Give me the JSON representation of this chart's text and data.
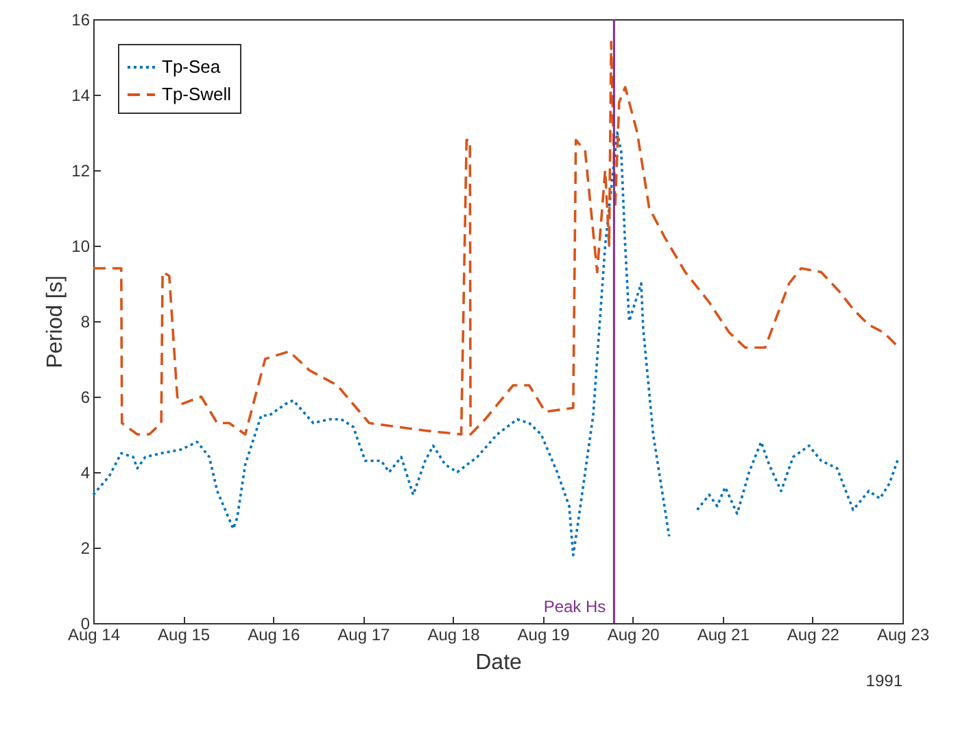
{
  "chart_data": {
    "type": "line",
    "xlabel": "Date",
    "ylabel": "Period [s]",
    "annotations": [
      "1991"
    ],
    "xlim": [
      "1991-08-14",
      "1991-08-23"
    ],
    "xticks": [
      {
        "value": "1991-08-14",
        "label": "Aug 14"
      },
      {
        "value": "1991-08-15",
        "label": "Aug 15"
      },
      {
        "value": "1991-08-16",
        "label": "Aug 16"
      },
      {
        "value": "1991-08-17",
        "label": "Aug 17"
      },
      {
        "value": "1991-08-18",
        "label": "Aug 18"
      },
      {
        "value": "1991-08-19",
        "label": "Aug 19"
      },
      {
        "value": "1991-08-20",
        "label": "Aug 20"
      },
      {
        "value": "1991-08-21",
        "label": "Aug 21"
      },
      {
        "value": "1991-08-22",
        "label": "Aug 22"
      },
      {
        "value": "1991-08-23",
        "label": "Aug 23"
      }
    ],
    "ylim": [
      0,
      16
    ],
    "yticks": [
      0,
      2,
      4,
      6,
      8,
      10,
      12,
      14,
      16
    ],
    "grid": false,
    "legend": "top left",
    "marker": "none",
    "ref_lines": [
      {
        "axis": "x",
        "value": "1991-08-19T19:00",
        "label": "Peak Hs",
        "color": "#7e2f8e"
      }
    ],
    "series": [
      {
        "name": "Tp-Sea",
        "color": "#0072bd",
        "line_style": "dotted",
        "x": [
          "1991-08-14T00:00",
          "1991-08-14T04:18",
          "1991-08-14T07:28",
          "1991-08-14T10:40",
          "1991-08-14T11:45",
          "1991-08-14T13:53",
          "1991-08-14T18:09",
          "1991-08-14T23:29",
          "1991-08-15T03:45",
          "1991-08-15T06:58",
          "1991-08-15T09:05",
          "1991-08-15T13:22",
          "1991-08-15T14:26",
          "1991-08-15T16:34",
          "1991-08-15T20:50",
          "1991-08-15T22:58",
          "1991-08-16T03:14",
          "1991-08-16T05:22",
          "1991-08-16T10:43",
          "1991-08-16T14:59",
          "1991-08-16T18:11",
          "1991-08-16T21:23",
          "1991-08-17T00:35",
          "1991-08-17T04:51",
          "1991-08-17T06:59",
          "1991-08-17T10:12",
          "1991-08-17T13:24",
          "1991-08-17T16:36",
          "1991-08-17T18:44",
          "1991-08-17T21:56",
          "1991-08-18T01:09",
          "1991-08-18T06:29",
          "1991-08-18T11:49",
          "1991-08-18T17:09",
          "1991-08-18T20:21",
          "1991-08-18T23:33",
          "1991-08-19T01:41",
          "1991-08-19T03:49",
          "1991-08-19T07:02",
          "1991-08-19T08:06",
          "1991-08-19T09:10",
          "1991-08-19T13:26",
          "1991-08-19T16:38",
          "1991-08-19T19:51",
          "1991-08-19T20:55",
          "1991-08-19T21:59",
          "1991-08-19T23:03",
          "1991-08-20T02:15",
          "1991-08-20T02:47",
          "1991-08-20T05:27",
          "1991-08-20T09:43",
          "1991-08-20T14:00",
          "1991-08-20T17:12",
          "1991-08-20T20:24",
          "1991-08-20T22:32",
          "1991-08-21T00:40",
          "1991-08-21T03:52",
          "1991-08-21T07:04",
          "1991-08-21T10:16",
          "1991-08-21T12:24",
          "1991-08-21T15:36",
          "1991-08-21T18:48",
          "1991-08-21T23:04",
          "1991-08-22T02:17",
          "1991-08-22T06:33",
          "1991-08-22T10:49",
          "1991-08-22T15:00",
          "1991-08-22T18:00",
          "1991-08-22T20:30",
          "1991-08-22T23:00"
        ],
        "values": [
          3.4,
          3.9,
          4.5,
          4.4,
          4.1,
          4.4,
          4.5,
          4.6,
          4.8,
          4.4,
          3.5,
          2.5,
          2.8,
          4.2,
          5.5,
          5.5,
          5.8,
          5.9,
          5.3,
          5.4,
          5.4,
          5.2,
          4.3,
          4.3,
          4.0,
          4.4,
          3.4,
          4.3,
          4.7,
          4.2,
          4.0,
          4.4,
          5.0,
          5.4,
          5.3,
          5.0,
          4.5,
          4.0,
          3.1,
          1.8,
          2.5,
          5.5,
          10.0,
          13.0,
          12.5,
          10.0,
          8.0,
          9.0,
          7.8,
          5.0,
          2.3,
          null,
          3.0,
          3.4,
          3.1,
          3.6,
          2.9,
          4.0,
          4.8,
          4.2,
          3.5,
          4.4,
          4.7,
          4.3,
          4.1,
          3.0,
          3.5,
          3.3,
          3.7,
          4.4
        ]
      },
      {
        "name": "Tp-Swell",
        "color": "#d95319",
        "line_style": "dashed",
        "x": [
          "1991-08-14T00:00",
          "1991-08-14T05:20",
          "1991-08-14T07:28",
          "1991-08-14T07:39",
          "1991-08-14T11:45",
          "1991-08-14T14:57",
          "1991-08-14T18:09",
          "1991-08-14T18:30",
          "1991-08-14T20:17",
          "1991-08-14T22:25",
          "1991-08-14T23:29",
          "1991-08-15T04:49",
          "1991-08-15T09:05",
          "1991-08-15T12:18",
          "1991-08-15T16:34",
          "1991-08-15T21:54",
          "1991-08-16T04:18",
          "1991-08-16T09:39",
          "1991-08-16T17:07",
          "1991-08-16T21:23",
          "1991-08-17T01:39",
          "1991-08-17T09:08",
          "1991-08-17T16:36",
          "1991-08-18T02:13",
          "1991-08-18T03:38",
          "1991-08-18T04:32",
          "1991-08-18T04:42",
          "1991-08-18T08:37",
          "1991-08-18T16:05",
          "1991-08-18T20:21",
          "1991-08-19T00:38",
          "1991-08-19T08:06",
          "1991-08-19T08:49",
          "1991-08-19T11:18",
          "1991-08-19T14:30",
          "1991-08-19T16:38",
          "1991-08-19T17:42",
          "1991-08-19T18:14",
          "1991-08-19T19:18",
          "1991-08-19T20:22",
          "1991-08-19T21:59",
          "1991-08-20T01:11",
          "1991-08-20T04:23",
          "1991-08-20T08:39",
          "1991-08-20T14:00",
          "1991-08-20T20:24",
          "1991-08-21T01:44",
          "1991-08-21T06:00",
          "1991-08-21T11:20",
          "1991-08-21T17:44",
          "1991-08-21T20:57",
          "1991-08-22T02:17",
          "1991-08-22T07:00",
          "1991-08-22T11:00",
          "1991-08-22T15:00",
          "1991-08-22T19:00",
          "1991-08-22T23:00"
        ],
        "values": [
          9.4,
          9.4,
          9.4,
          5.3,
          5.0,
          5.0,
          5.3,
          9.3,
          9.2,
          6.0,
          5.8,
          6.0,
          5.3,
          5.3,
          5.0,
          7.0,
          7.2,
          6.7,
          6.3,
          5.8,
          5.3,
          5.2,
          5.1,
          5.0,
          12.8,
          12.8,
          5.0,
          5.4,
          6.3,
          6.3,
          5.6,
          5.7,
          12.8,
          12.5,
          9.3,
          12.0,
          10.0,
          15.4,
          11.0,
          13.8,
          14.2,
          13.0,
          11.0,
          10.2,
          9.3,
          8.5,
          7.7,
          7.3,
          7.3,
          9.0,
          9.4,
          9.3,
          8.8,
          8.3,
          7.9,
          7.7,
          7.3
        ]
      }
    ]
  }
}
